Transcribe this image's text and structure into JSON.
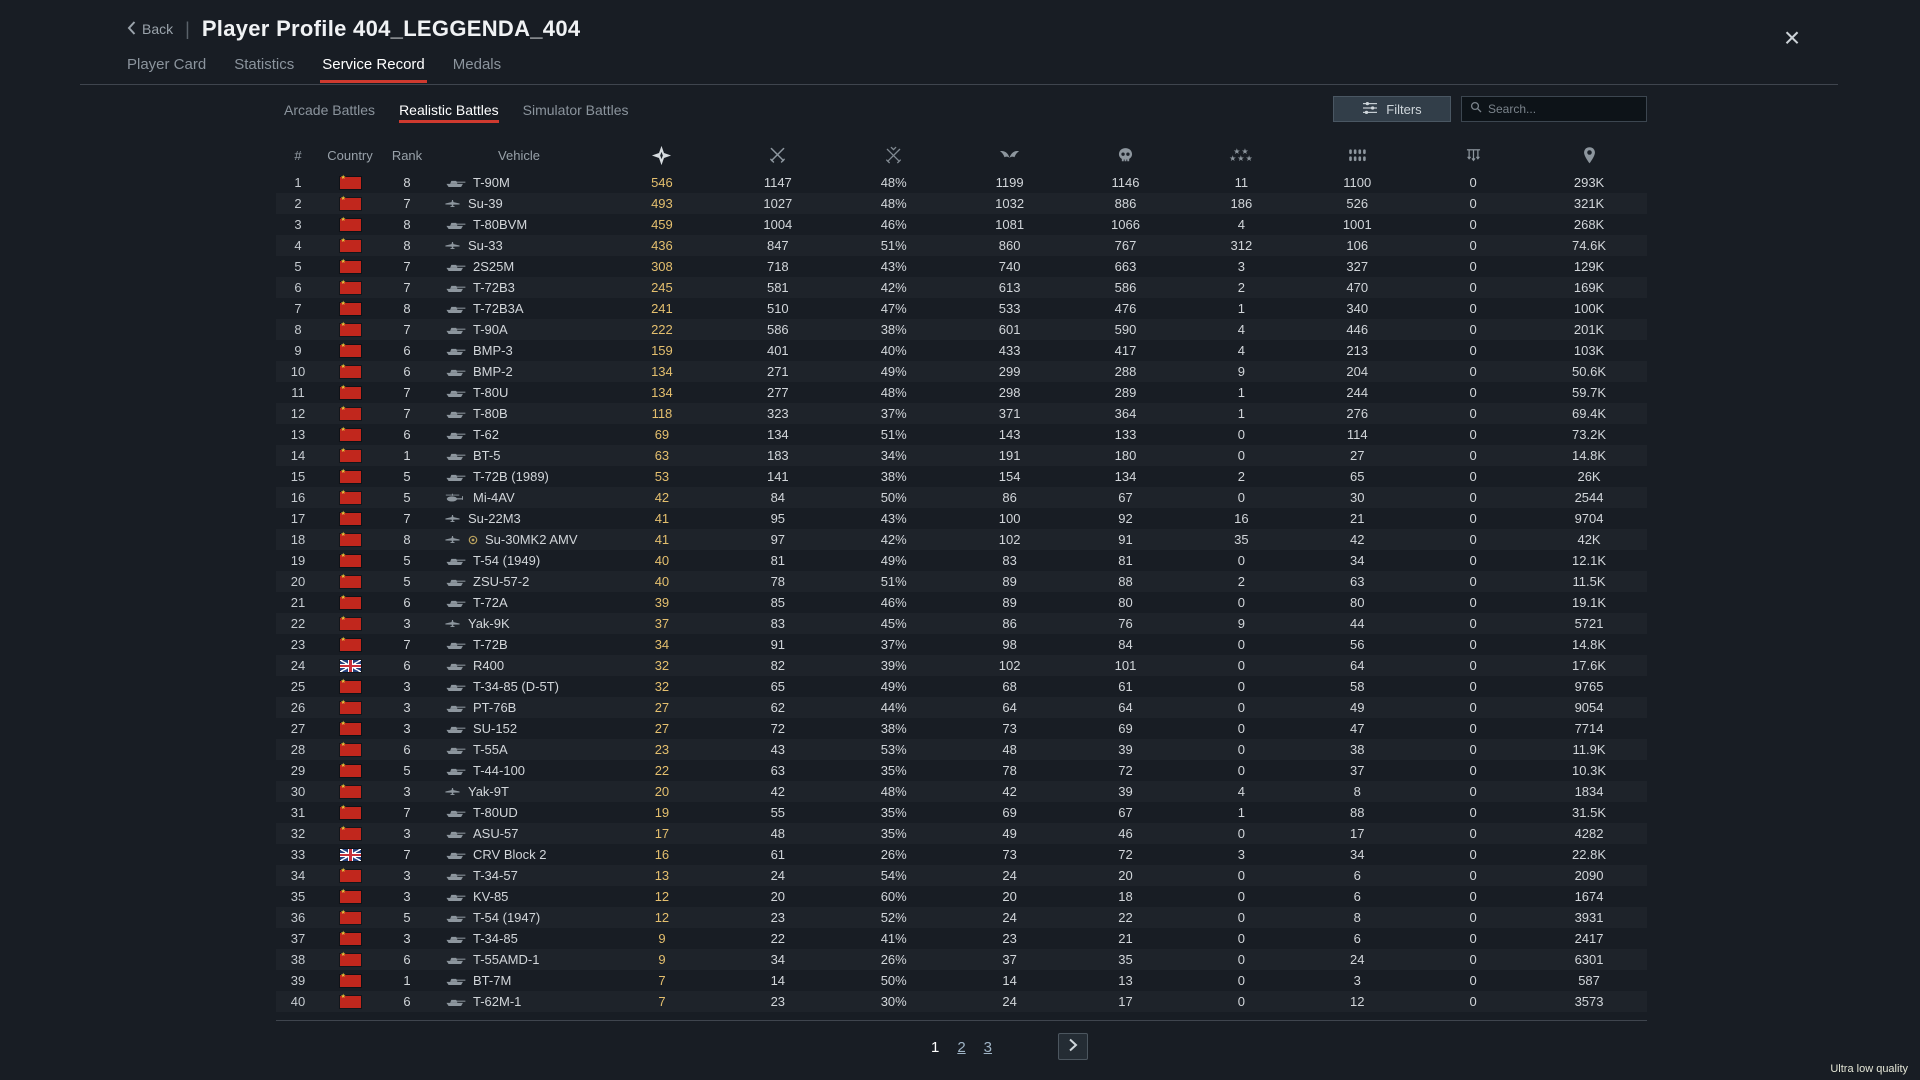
{
  "header": {
    "back_label": "Back",
    "divider": "|",
    "title": "Player Profile 404_LEGGENDA_404",
    "close_glyph": "×"
  },
  "tabs": [
    {
      "label": "Player Card"
    },
    {
      "label": "Statistics"
    },
    {
      "label": "Service Record"
    },
    {
      "label": "Medals"
    }
  ],
  "active_tab": "Service Record",
  "subtabs": [
    {
      "label": "Arcade Battles"
    },
    {
      "label": "Realistic Battles"
    },
    {
      "label": "Simulator Battles"
    }
  ],
  "active_subtab": "Realistic Battles",
  "toolbar": {
    "filters_label": "Filters",
    "search_placeholder": "Search..."
  },
  "colors": {
    "accent_red": "#cf3a2f",
    "gold_number": "#e4bf6e",
    "background": "#181d24"
  },
  "table": {
    "text_columns": [
      "#",
      "Country",
      "Rank",
      "Vehicle"
    ],
    "icon_columns": [
      "victories",
      "battles",
      "win-rate",
      "respawns",
      "deaths",
      "air-targets-destroyed",
      "ground-targets-destroyed",
      "naval-targets-destroyed",
      "mission-score"
    ],
    "rows": [
      {
        "num": 1,
        "country": "ussr",
        "rank": 8,
        "type": "tank",
        "vehicle": "T-90M",
        "stats": [
          "546",
          "1147",
          "48%",
          "1199",
          "1146",
          "11",
          "1100",
          "0",
          "293K"
        ]
      },
      {
        "num": 2,
        "country": "ussr",
        "rank": 7,
        "type": "plane",
        "vehicle": "Su-39",
        "stats": [
          "493",
          "1027",
          "48%",
          "1032",
          "886",
          "186",
          "526",
          "0",
          "321K"
        ]
      },
      {
        "num": 3,
        "country": "ussr",
        "rank": 8,
        "type": "tank",
        "vehicle": "T-80BVM",
        "stats": [
          "459",
          "1004",
          "46%",
          "1081",
          "1066",
          "4",
          "1001",
          "0",
          "268K"
        ]
      },
      {
        "num": 4,
        "country": "ussr",
        "rank": 8,
        "type": "plane",
        "vehicle": "Su-33",
        "stats": [
          "436",
          "847",
          "51%",
          "860",
          "767",
          "312",
          "106",
          "0",
          "74.6K"
        ]
      },
      {
        "num": 5,
        "country": "ussr",
        "rank": 7,
        "type": "tank",
        "vehicle": "2S25M",
        "stats": [
          "308",
          "718",
          "43%",
          "740",
          "663",
          "3",
          "327",
          "0",
          "129K"
        ]
      },
      {
        "num": 6,
        "country": "ussr",
        "rank": 7,
        "type": "tank",
        "vehicle": "T-72B3",
        "stats": [
          "245",
          "581",
          "42%",
          "613",
          "586",
          "2",
          "470",
          "0",
          "169K"
        ]
      },
      {
        "num": 7,
        "country": "ussr",
        "rank": 8,
        "type": "tank",
        "vehicle": "T-72B3A",
        "stats": [
          "241",
          "510",
          "47%",
          "533",
          "476",
          "1",
          "340",
          "0",
          "100K"
        ]
      },
      {
        "num": 8,
        "country": "ussr",
        "rank": 7,
        "type": "tank",
        "vehicle": "T-90A",
        "stats": [
          "222",
          "586",
          "38%",
          "601",
          "590",
          "4",
          "446",
          "0",
          "201K"
        ]
      },
      {
        "num": 9,
        "country": "ussr",
        "rank": 6,
        "type": "tank",
        "vehicle": "BMP-3",
        "stats": [
          "159",
          "401",
          "40%",
          "433",
          "417",
          "4",
          "213",
          "0",
          "103K"
        ]
      },
      {
        "num": 10,
        "country": "ussr",
        "rank": 6,
        "type": "tank",
        "vehicle": "BMP-2",
        "stats": [
          "134",
          "271",
          "49%",
          "299",
          "288",
          "9",
          "204",
          "0",
          "50.6K"
        ]
      },
      {
        "num": 11,
        "country": "ussr",
        "rank": 7,
        "type": "tank",
        "vehicle": "T-80U",
        "stats": [
          "134",
          "277",
          "48%",
          "298",
          "289",
          "1",
          "244",
          "0",
          "59.7K"
        ]
      },
      {
        "num": 12,
        "country": "ussr",
        "rank": 7,
        "type": "tank",
        "vehicle": "T-80B",
        "stats": [
          "118",
          "323",
          "37%",
          "371",
          "364",
          "1",
          "276",
          "0",
          "69.4K"
        ]
      },
      {
        "num": 13,
        "country": "ussr",
        "rank": 6,
        "type": "tank",
        "vehicle": "T-62",
        "stats": [
          "69",
          "134",
          "51%",
          "143",
          "133",
          "0",
          "114",
          "0",
          "73.2K"
        ]
      },
      {
        "num": 14,
        "country": "ussr",
        "rank": 1,
        "type": "tank",
        "vehicle": "BT-5",
        "stats": [
          "63",
          "183",
          "34%",
          "191",
          "180",
          "0",
          "27",
          "0",
          "14.8K"
        ]
      },
      {
        "num": 15,
        "country": "ussr",
        "rank": 5,
        "type": "tank",
        "vehicle": "T-72B (1989)",
        "stats": [
          "53",
          "141",
          "38%",
          "154",
          "134",
          "2",
          "65",
          "0",
          "26K"
        ]
      },
      {
        "num": 16,
        "country": "ussr",
        "rank": 5,
        "type": "heli",
        "vehicle": "Mi-4AV",
        "stats": [
          "42",
          "84",
          "50%",
          "86",
          "67",
          "0",
          "30",
          "0",
          "2544"
        ]
      },
      {
        "num": 17,
        "country": "ussr",
        "rank": 7,
        "type": "plane",
        "vehicle": "Su-22M3",
        "stats": [
          "41",
          "95",
          "43%",
          "100",
          "92",
          "16",
          "21",
          "0",
          "9704"
        ]
      },
      {
        "num": 18,
        "country": "ussr",
        "rank": 8,
        "type": "plane",
        "vehicle": "Su-30MK2 AMV",
        "marker": true,
        "stats": [
          "41",
          "97",
          "42%",
          "102",
          "91",
          "35",
          "42",
          "0",
          "42K"
        ]
      },
      {
        "num": 19,
        "country": "ussr",
        "rank": 5,
        "type": "tank",
        "vehicle": "T-54 (1949)",
        "stats": [
          "40",
          "81",
          "49%",
          "83",
          "81",
          "0",
          "34",
          "0",
          "12.1K"
        ]
      },
      {
        "num": 20,
        "country": "ussr",
        "rank": 5,
        "type": "tank",
        "vehicle": "ZSU-57-2",
        "stats": [
          "40",
          "78",
          "51%",
          "89",
          "88",
          "2",
          "63",
          "0",
          "11.5K"
        ]
      },
      {
        "num": 21,
        "country": "ussr",
        "rank": 6,
        "type": "tank",
        "vehicle": "T-72A",
        "stats": [
          "39",
          "85",
          "46%",
          "89",
          "80",
          "0",
          "80",
          "0",
          "19.1K"
        ]
      },
      {
        "num": 22,
        "country": "ussr",
        "rank": 3,
        "type": "plane",
        "vehicle": "Yak-9K",
        "stats": [
          "37",
          "83",
          "45%",
          "86",
          "76",
          "9",
          "44",
          "0",
          "5721"
        ]
      },
      {
        "num": 23,
        "country": "ussr",
        "rank": 7,
        "type": "tank",
        "vehicle": "T-72B",
        "stats": [
          "34",
          "91",
          "37%",
          "98",
          "84",
          "0",
          "56",
          "0",
          "14.8K"
        ]
      },
      {
        "num": 24,
        "country": "uk",
        "rank": 6,
        "type": "tank",
        "vehicle": "R400",
        "stats": [
          "32",
          "82",
          "39%",
          "102",
          "101",
          "0",
          "64",
          "0",
          "17.6K"
        ]
      },
      {
        "num": 25,
        "country": "ussr",
        "rank": 3,
        "type": "tank",
        "vehicle": "T-34-85 (D-5T)",
        "stats": [
          "32",
          "65",
          "49%",
          "68",
          "61",
          "0",
          "58",
          "0",
          "9765"
        ]
      },
      {
        "num": 26,
        "country": "ussr",
        "rank": 3,
        "type": "tank",
        "vehicle": "PT-76B",
        "stats": [
          "27",
          "62",
          "44%",
          "64",
          "64",
          "0",
          "49",
          "0",
          "9054"
        ]
      },
      {
        "num": 27,
        "country": "ussr",
        "rank": 3,
        "type": "tank",
        "vehicle": "SU-152",
        "stats": [
          "27",
          "72",
          "38%",
          "73",
          "69",
          "0",
          "47",
          "0",
          "7714"
        ]
      },
      {
        "num": 28,
        "country": "ussr",
        "rank": 6,
        "type": "tank",
        "vehicle": "T-55A",
        "stats": [
          "23",
          "43",
          "53%",
          "48",
          "39",
          "0",
          "38",
          "0",
          "11.9K"
        ]
      },
      {
        "num": 29,
        "country": "ussr",
        "rank": 5,
        "type": "tank",
        "vehicle": "T-44-100",
        "stats": [
          "22",
          "63",
          "35%",
          "78",
          "72",
          "0",
          "37",
          "0",
          "10.3K"
        ]
      },
      {
        "num": 30,
        "country": "ussr",
        "rank": 3,
        "type": "plane",
        "vehicle": "Yak-9T",
        "stats": [
          "20",
          "42",
          "48%",
          "42",
          "39",
          "4",
          "8",
          "0",
          "1834"
        ]
      },
      {
        "num": 31,
        "country": "ussr",
        "rank": 7,
        "type": "tank",
        "vehicle": "T-80UD",
        "stats": [
          "19",
          "55",
          "35%",
          "69",
          "67",
          "1",
          "88",
          "0",
          "31.5K"
        ]
      },
      {
        "num": 32,
        "country": "ussr",
        "rank": 3,
        "type": "tank",
        "vehicle": "ASU-57",
        "stats": [
          "17",
          "48",
          "35%",
          "49",
          "46",
          "0",
          "17",
          "0",
          "4282"
        ]
      },
      {
        "num": 33,
        "country": "uk",
        "rank": 7,
        "type": "tank",
        "vehicle": "CRV Block 2",
        "stats": [
          "16",
          "61",
          "26%",
          "73",
          "72",
          "3",
          "34",
          "0",
          "22.8K"
        ]
      },
      {
        "num": 34,
        "country": "ussr",
        "rank": 3,
        "type": "tank",
        "vehicle": "T-34-57",
        "stats": [
          "13",
          "24",
          "54%",
          "24",
          "20",
          "0",
          "6",
          "0",
          "2090"
        ]
      },
      {
        "num": 35,
        "country": "ussr",
        "rank": 3,
        "type": "tank",
        "vehicle": "KV-85",
        "stats": [
          "12",
          "20",
          "60%",
          "20",
          "18",
          "0",
          "6",
          "0",
          "1674"
        ]
      },
      {
        "num": 36,
        "country": "ussr",
        "rank": 5,
        "type": "tank",
        "vehicle": "T-54 (1947)",
        "stats": [
          "12",
          "23",
          "52%",
          "24",
          "22",
          "0",
          "8",
          "0",
          "3931"
        ]
      },
      {
        "num": 37,
        "country": "ussr",
        "rank": 3,
        "type": "tank",
        "vehicle": "T-34-85",
        "stats": [
          "9",
          "22",
          "41%",
          "23",
          "21",
          "0",
          "6",
          "0",
          "2417"
        ]
      },
      {
        "num": 38,
        "country": "ussr",
        "rank": 6,
        "type": "tank",
        "vehicle": "T-55AMD-1",
        "stats": [
          "9",
          "34",
          "26%",
          "37",
          "35",
          "0",
          "24",
          "0",
          "6301"
        ]
      },
      {
        "num": 39,
        "country": "ussr",
        "rank": 1,
        "type": "tank",
        "vehicle": "BT-7M",
        "stats": [
          "7",
          "14",
          "50%",
          "14",
          "13",
          "0",
          "3",
          "0",
          "587"
        ]
      },
      {
        "num": 40,
        "country": "ussr",
        "rank": 6,
        "type": "tank",
        "vehicle": "T-62M-1",
        "stats": [
          "7",
          "23",
          "30%",
          "24",
          "17",
          "0",
          "12",
          "0",
          "3573"
        ]
      }
    ]
  },
  "pagination": {
    "pages": [
      "1",
      "2",
      "3"
    ],
    "current": "1"
  },
  "footer": {
    "quality_label": "Ultra low quality"
  }
}
